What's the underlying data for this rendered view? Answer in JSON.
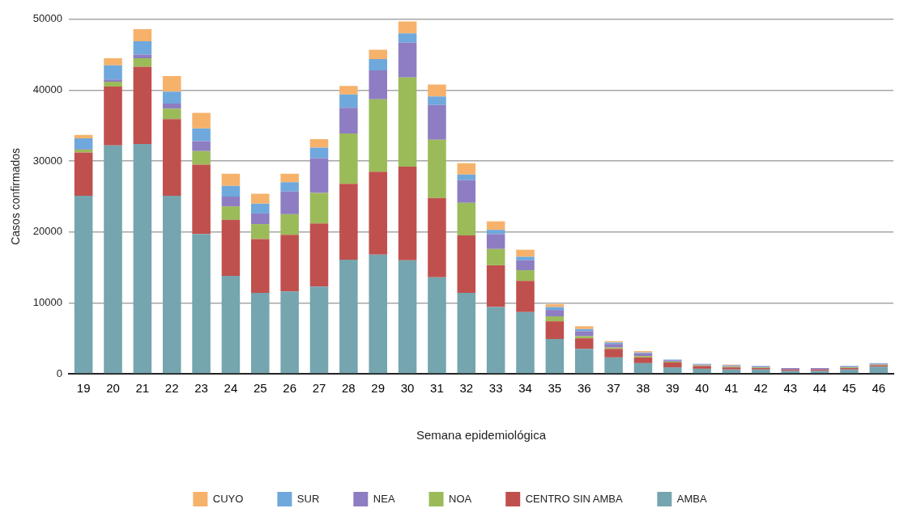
{
  "chart_data": {
    "type": "bar",
    "stacked": true,
    "xlabel": "Semana epidemiológica",
    "ylabel": "Casos confirmados",
    "categories": [
      "19",
      "20",
      "21",
      "22",
      "23",
      "24",
      "25",
      "26",
      "27",
      "28",
      "29",
      "30",
      "31",
      "32",
      "33",
      "34",
      "35",
      "36",
      "37",
      "38",
      "39",
      "40",
      "41",
      "42",
      "43",
      "44",
      "45",
      "46"
    ],
    "ylim": [
      0,
      50000
    ],
    "yticks": [
      0,
      10000,
      20000,
      30000,
      40000,
      50000
    ],
    "grid": "y",
    "legend": "bottom",
    "series": [
      {
        "name": "AMBA",
        "color": "#75a5af",
        "values": [
          25100,
          32200,
          32400,
          25100,
          19700,
          13800,
          11400,
          11600,
          12300,
          16100,
          16800,
          16000,
          13600,
          11400,
          9400,
          8700,
          4900,
          3500,
          2300,
          1500,
          900,
          700,
          600,
          600,
          400,
          400,
          600,
          1000
        ]
      },
      {
        "name": "CENTRO SIN AMBA",
        "color": "#c0504d",
        "values": [
          6100,
          8300,
          10900,
          10800,
          9800,
          7900,
          7600,
          8000,
          8900,
          10700,
          11700,
          13200,
          11200,
          8100,
          5900,
          4400,
          2500,
          1500,
          1200,
          800,
          700,
          400,
          300,
          200,
          200,
          200,
          200,
          200
        ]
      },
      {
        "name": "NOA",
        "color": "#9bbb59",
        "values": [
          400,
          700,
          1200,
          1500,
          1900,
          1900,
          2100,
          2900,
          4300,
          7100,
          10200,
          12600,
          8200,
          4600,
          2300,
          1500,
          700,
          300,
          200,
          200,
          100,
          100,
          100,
          100,
          0,
          0,
          100,
          100
        ]
      },
      {
        "name": "NEA",
        "color": "#8e7dc2",
        "values": [
          100,
          300,
          500,
          700,
          1400,
          1400,
          1500,
          3200,
          4900,
          3600,
          4100,
          4900,
          4900,
          3200,
          2100,
          1400,
          900,
          700,
          500,
          400,
          200,
          100,
          100,
          100,
          200,
          200,
          100,
          100
        ]
      },
      {
        "name": "SUR",
        "color": "#6fa8dc",
        "values": [
          1500,
          2000,
          1900,
          1700,
          1800,
          1500,
          1400,
          1300,
          1500,
          1900,
          1600,
          1300,
          1200,
          800,
          600,
          500,
          400,
          300,
          200,
          100,
          100,
          100,
          100,
          100,
          0,
          0,
          100,
          100
        ]
      },
      {
        "name": "CUYO",
        "color": "#f6b26b",
        "values": [
          500,
          1000,
          1700,
          2200,
          2200,
          1700,
          1400,
          1200,
          1200,
          1200,
          1300,
          1700,
          1700,
          1600,
          1200,
          1000,
          400,
          400,
          200,
          200,
          0,
          0,
          100,
          0,
          0,
          0,
          0,
          0
        ]
      }
    ]
  }
}
